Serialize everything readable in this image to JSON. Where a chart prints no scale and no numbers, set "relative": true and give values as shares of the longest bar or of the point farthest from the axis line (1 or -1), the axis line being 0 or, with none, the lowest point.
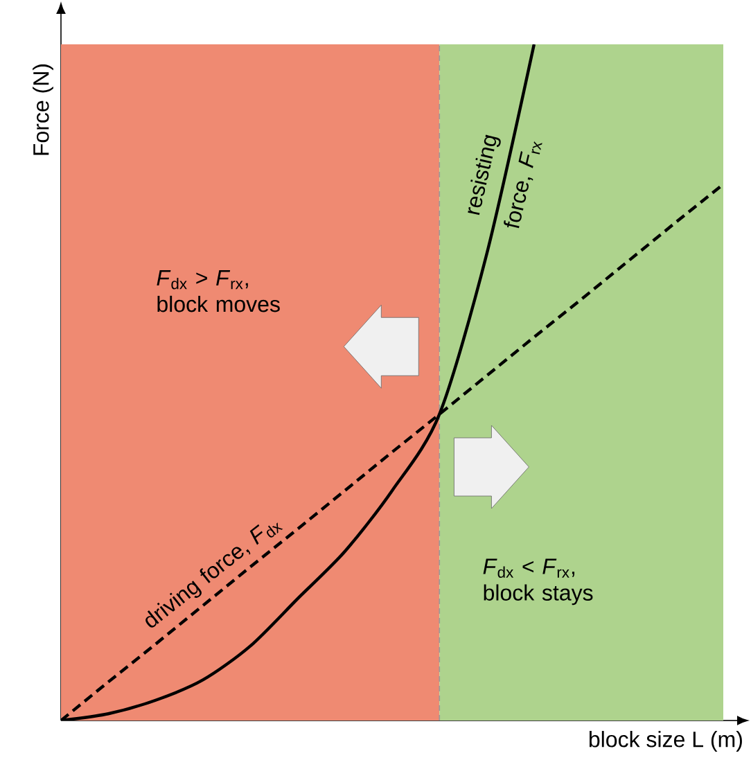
{
  "chart_data": {
    "type": "line",
    "relative": true,
    "xlabel": "block size L (m)",
    "ylabel": "Force (N)",
    "categories": [
      null,
      null,
      null,
      null,
      null,
      null,
      null,
      null,
      null,
      null,
      null,
      null,
      null,
      null,
      null
    ],
    "series": [
      {
        "name": "driving force, *F*$_{dx}$",
        "color": "#000000",
        "line_style": "dashed",
        "values": [
          0,
          0.057,
          0.113,
          0.17,
          0.227,
          0.283,
          0.34,
          0.397,
          0.453,
          0.51,
          0.567,
          0.623,
          0.68,
          0.737,
          0.793
        ]
      },
      {
        "name": "resisting force, *F*$_{rx}$",
        "color": "#000000",
        "line_style": "solid",
        "values": [
          0,
          0.01,
          0.03,
          0.06,
          0.11,
          0.18,
          0.25,
          0.34,
          0.453,
          0.69,
          1.0,
          null,
          null,
          null,
          null
        ]
      }
    ],
    "annotations": [
      "*F*$_{dx}$ > *F*$_{rx}$, block moves",
      "*F*$_{dx}$ < *F*$_{rx}$, block stays"
    ],
    "marker": "none"
  }
}
